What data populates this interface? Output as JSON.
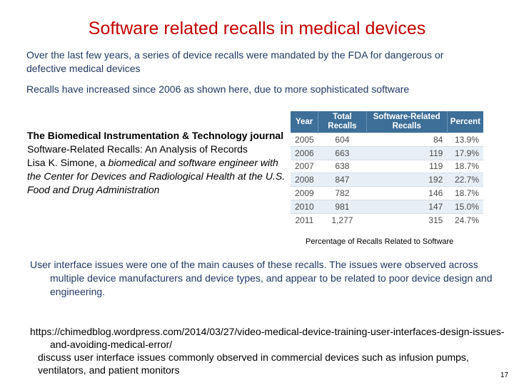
{
  "title": "Software related recalls in medical devices",
  "intro": "Over the last few years, a series of device recalls were mandated by the FDA for dangerous or defective medical devices",
  "increase": "Recalls have increased since 2006 as shown here, due to more sophisticated software",
  "citation": {
    "journal": "The Biomedical Instrumentation & Technology journal",
    "article": "Software-Related Recalls: An Analysis of Records",
    "author": "Lisa K. Simone, a",
    "author_role": "biomedical and software engineer with the Center for Devices and Radiological Health at the U.S. Food and Drug Administration"
  },
  "table": {
    "headers": [
      "Year",
      "Total Recalls",
      "Software-Related Recalls",
      "Percent"
    ],
    "rows": [
      [
        "2005",
        "604",
        "84",
        "13.9%"
      ],
      [
        "2006",
        "663",
        "119",
        "17.9%"
      ],
      [
        "2007",
        "638",
        "119",
        "18.7%"
      ],
      [
        "2008",
        "847",
        "192",
        "22.7%"
      ],
      [
        "2009",
        "782",
        "146",
        "18.7%"
      ],
      [
        "2010",
        "981",
        "147",
        "15.0%"
      ],
      [
        "2011",
        "1,277",
        "315",
        "24.7%"
      ]
    ]
  },
  "caption": "Percentage of Recalls Related  to Software",
  "ui_issues": "User interface issues were one of the main causes of these recalls. The issues were observed across multiple device manufacturers and device types, and appear to be related to poor device design and engineering.",
  "link": "https://chimedblog.wordpress.com/2014/03/27/video-medical-device-training-user-interfaces-design-issues-and-avoiding-medical-error/",
  "discuss": "discuss user interface issues commonly observed in commercial devices such as infusion pumps, ventilators, and patient monitors",
  "page_number": "17"
}
